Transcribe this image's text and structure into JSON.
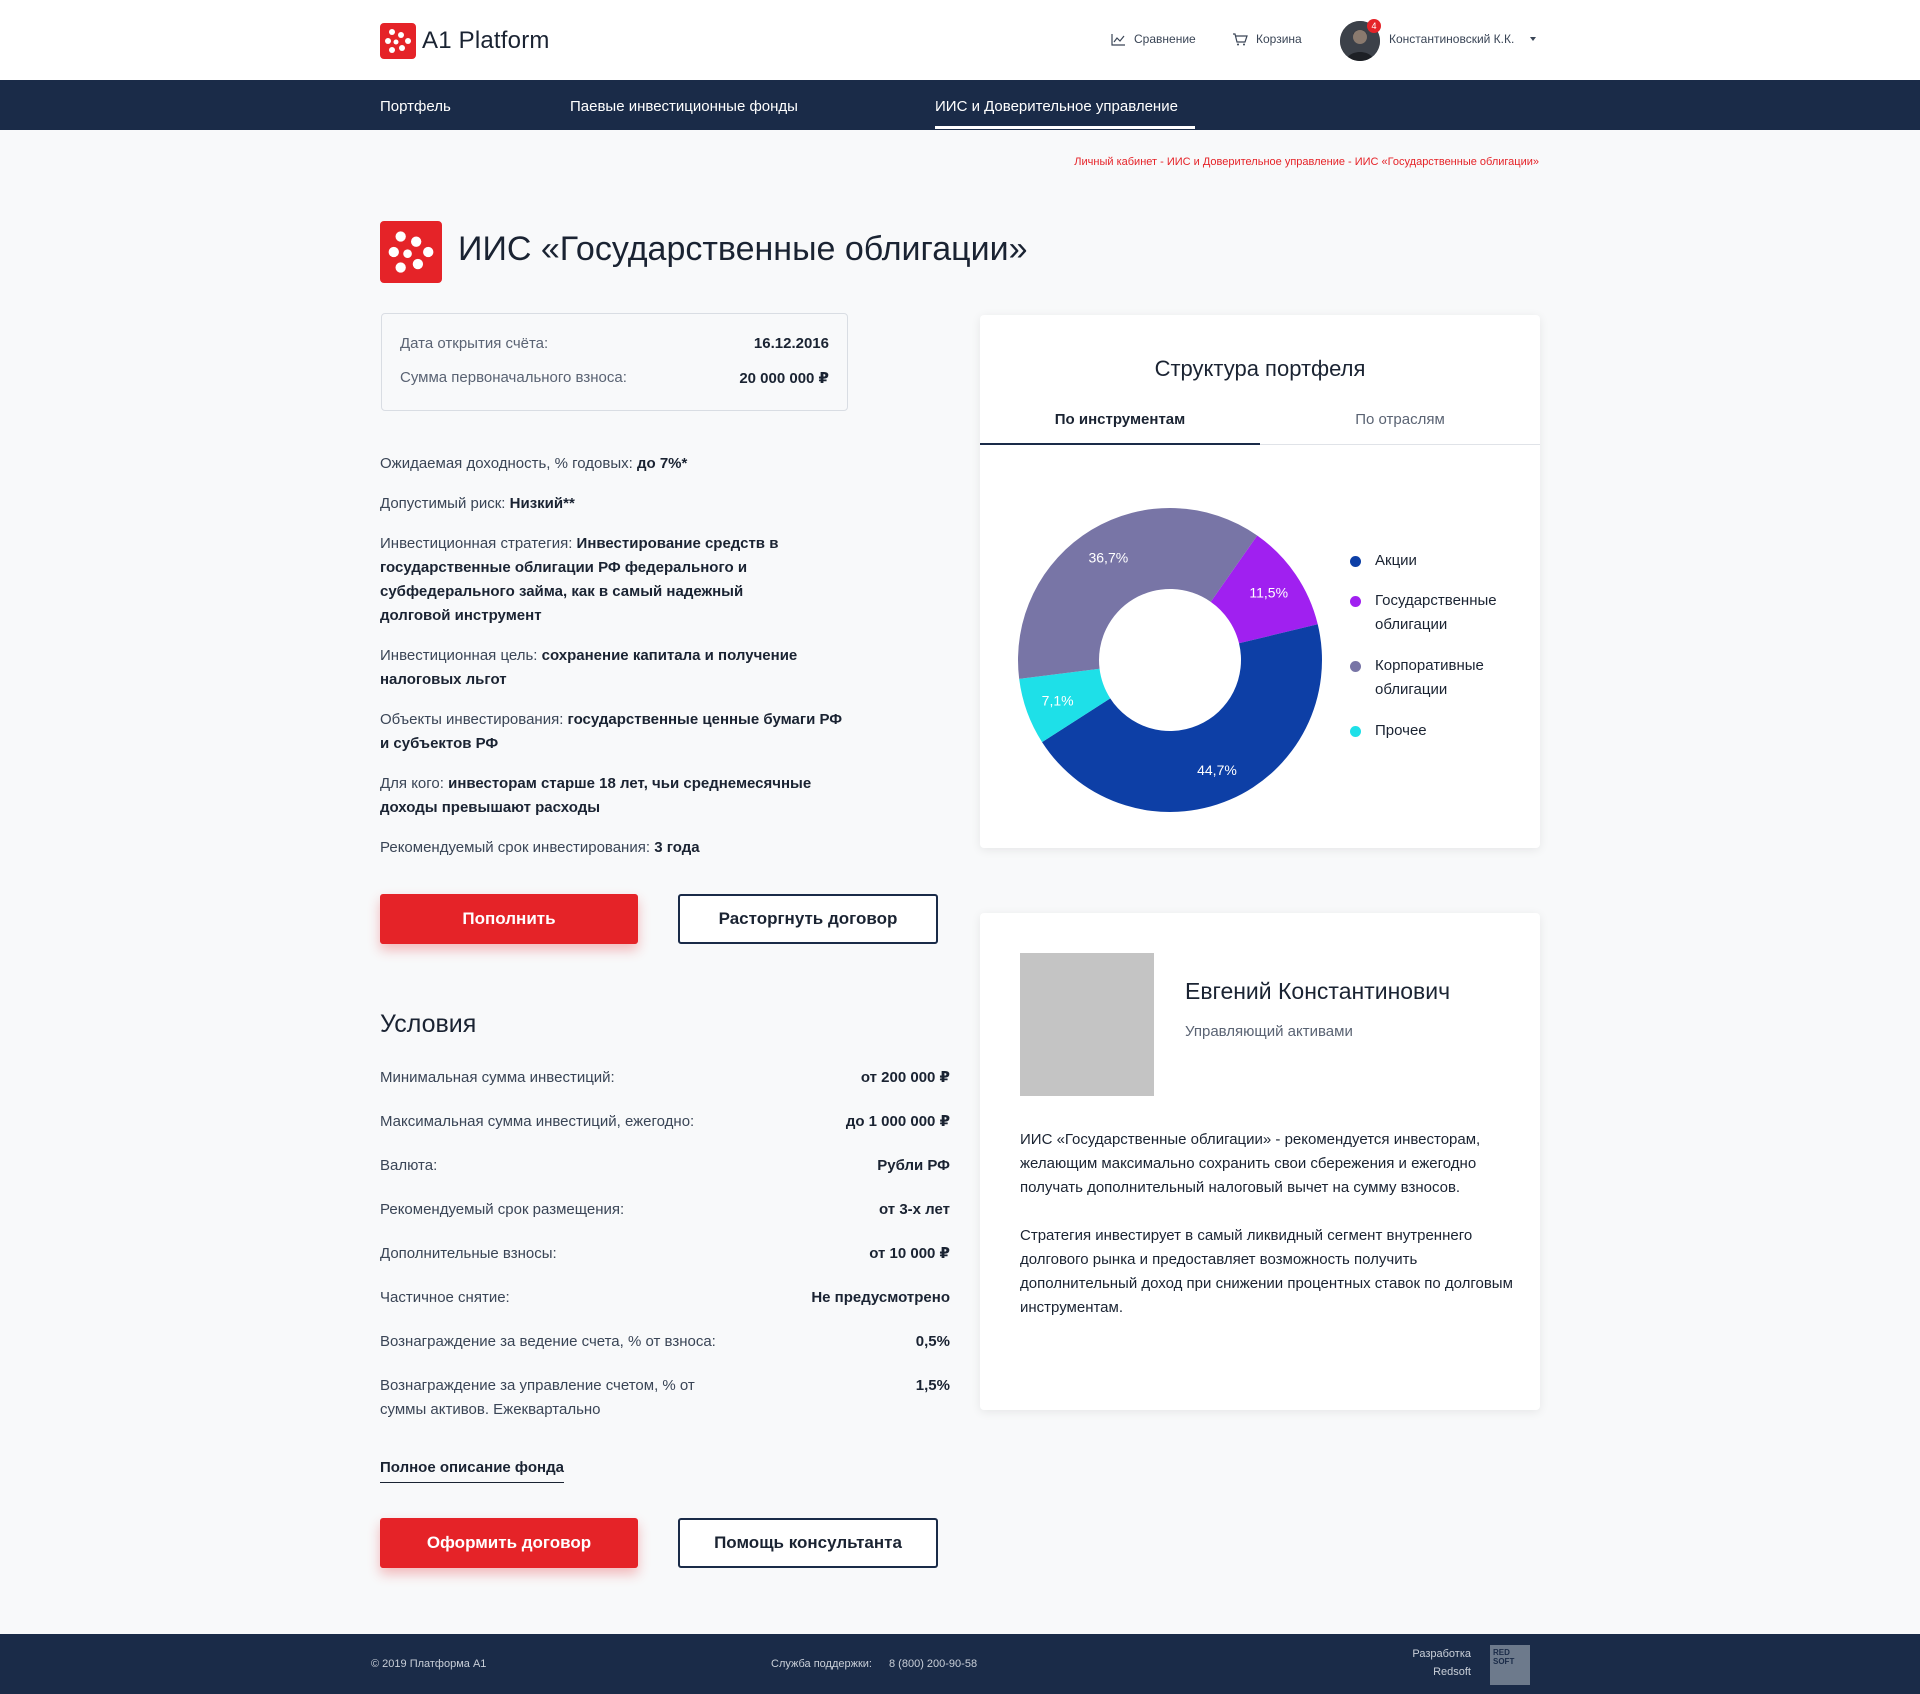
{
  "header": {
    "app_name": "A1 Platform",
    "compare_label": "Сравнение",
    "cart_label": "Корзина",
    "notification_count": "4",
    "user_name": "Константиновский К.К."
  },
  "nav": {
    "items": [
      {
        "label": "Портфель"
      },
      {
        "label": "Паевые инвестиционные фонды"
      },
      {
        "label": "ИИС и Доверительное управление"
      }
    ],
    "active_index": 2
  },
  "breadcrumb": "Личный кабинет - ИИС и Доверительное управление - ИИС «Государственные облигации»",
  "page_title": "ИИС «Государственные облигации»",
  "account": {
    "open_date_label": "Дата открытия счёта:",
    "open_date": "16.12.2016",
    "initial_sum_label": "Сумма первоначального взноса:",
    "initial_sum": "20 000 000 ₽"
  },
  "properties": [
    {
      "label": "Ожидаемая доходность, % годовых: ",
      "value": "до 7%*"
    },
    {
      "label": "Допустимый риск: ",
      "value": "Низкий**"
    },
    {
      "label": "Инвестиционная стратегия: ",
      "value": "Инвестирование средств в государственные облигации РФ федерального и субфедерального займа, как в самый надежный долговой инструмент"
    },
    {
      "label": "Инвестиционная цель: ",
      "value": "сохранение капитала и получение налоговых льгот"
    },
    {
      "label": "Объекты инвестирования: ",
      "value": "государственные ценные бумаги РФ и субъектов РФ"
    },
    {
      "label": "Для кого: ",
      "value": "инвесторам старше 18 лет, чьи среднемесячные доходы превышают расходы"
    },
    {
      "label": "Рекомендуемый срок инвестирования: ",
      "value": "3 года"
    }
  ],
  "buttons": {
    "top_up": "Пополнить",
    "terminate": "Расторгнуть договор",
    "sign": "Оформить договор",
    "consultant": "Помощь консультанта"
  },
  "conditions": {
    "title": "Условия",
    "rows": [
      {
        "label": "Минимальная сумма инвестиций:",
        "value": "от 200 000 ₽"
      },
      {
        "label": "Максимальная сумма инвестиций,  ежегодно:",
        "value": "до 1 000 000  ₽"
      },
      {
        "label": "Валюта:",
        "value": "Рубли РФ"
      },
      {
        "label": "Рекомендуемый срок размещения:",
        "value": "от 3-х лет"
      },
      {
        "label": "Дополнительные взносы:",
        "value": "от 10 000 ₽"
      },
      {
        "label": "Частичное снятие:",
        "value": "Не предусмотрено"
      },
      {
        "label": "Вознаграждение за ведение счета, % от взноса:",
        "value": "0,5%"
      },
      {
        "label": "Вознаграждение за управление счетом, % от суммы активов. Ежеквартально",
        "value": "1,5%"
      }
    ],
    "full_description_link": "Полное описание фонда"
  },
  "portfolio": {
    "title": "Структура портфеля",
    "tabs": [
      {
        "label": "По инструментам"
      },
      {
        "label": "По отраслям"
      }
    ],
    "active_tab": 0
  },
  "chart_data": {
    "type": "pie",
    "donut": true,
    "title": "Структура портфеля",
    "legend_position": "right",
    "slices": [
      {
        "name": "Акции",
        "value": 44.7,
        "label": "44,7%",
        "color": "#0d3fa6"
      },
      {
        "name": "Государственные облигации",
        "value": 11.5,
        "label": "11,5%",
        "color": "#a020f0"
      },
      {
        "name": "Корпоративные облигации",
        "value": 36.7,
        "label": "36,7%",
        "color": "#7875a6"
      },
      {
        "name": "Прочее",
        "value": 7.1,
        "label": "7,1%",
        "color": "#1ee0e8"
      }
    ]
  },
  "manager": {
    "name": "Евгений Константинович",
    "role": "Управляющий активами",
    "description": [
      "ИИС «Государственные  облигации» - рекомендуется инвесторам, желающим максимально сохранить свои сбережения и ежегодно получать дополнительный налоговый вычет на сумму взносов.",
      "Стратегия инвестирует в самый ликвидный сегмент внутреннего долгового рынка и предоставляет возможность  получить дополнительный доход при снижении процентных ставок по долговым инструментам."
    ]
  },
  "footer": {
    "copyright": "© 2019  Платформа А1",
    "support_label": "Служба поддержки:",
    "support_phone": "8 (800) 200-90-58",
    "dev_label": "Разработка",
    "dev_company": "Redsoft",
    "dev_logo_text": "RED SOFT"
  },
  "colors": {
    "accent": "#e52328",
    "navy": "#1a2b48"
  }
}
